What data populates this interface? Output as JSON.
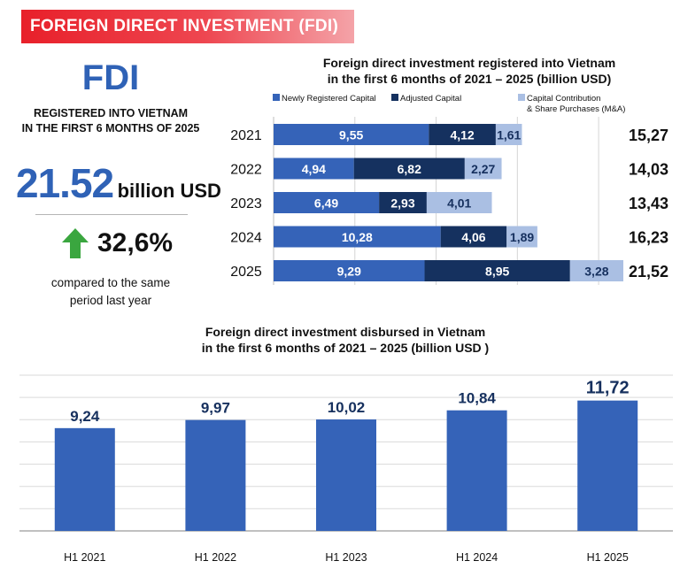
{
  "header": {
    "banner": "FOREIGN DIRECT INVESTMENT (FDI)"
  },
  "summary": {
    "title": "FDI",
    "subtitle_line1": "REGISTERED INTO VIETNAM",
    "subtitle_line2": "IN THE FIRST 6 MONTHS OF 2025",
    "value": "21.52",
    "unit": "billion USD",
    "growth": "32,6%",
    "compare_line1": "compared to the same",
    "compare_line2": "period last year",
    "arrow_color": "#3aa63f"
  },
  "chart_data": [
    {
      "type": "bar",
      "orientation": "horizontal",
      "stacked": true,
      "title_line1": "Foreign direct investment registered into Vietnam",
      "title_line2": "in the first 6 months of 2021 – 2025 (billion USD)",
      "categories": [
        "2021",
        "2022",
        "2023",
        "2024",
        "2025"
      ],
      "series": [
        {
          "name": "Newly Registered Capital",
          "color": "#3563b8",
          "text_color": "#ffffff",
          "values": [
            9.55,
            4.94,
            6.49,
            10.28,
            9.29
          ],
          "labels": [
            "9,55",
            "4,94",
            "6,49",
            "10,28",
            "9,29"
          ]
        },
        {
          "name": "Adjusted Capital",
          "color": "#15315f",
          "text_color": "#ffffff",
          "values": [
            4.12,
            6.82,
            2.93,
            4.06,
            8.95
          ],
          "labels": [
            "4,12",
            "6,82",
            "2,93",
            "4,06",
            "8,95"
          ]
        },
        {
          "name": "Capital Contribution\n& Share Purchases (M&A)",
          "name_line1": "Capital Contribution",
          "name_line2": "& Share Purchases (M&A)",
          "color": "#aabfe3",
          "text_color": "#16305e",
          "values": [
            1.61,
            2.27,
            4.01,
            1.89,
            3.28
          ],
          "labels": [
            "1,61",
            "2,27",
            "4,01",
            "1,89",
            "3,28"
          ]
        }
      ],
      "totals": [
        "15,27",
        "14,03",
        "13,43",
        "16,23",
        "21,52"
      ],
      "xlim": [
        0,
        22
      ],
      "grid": true,
      "legend": "top"
    },
    {
      "type": "bar",
      "title_line1": "Foreign direct investment disbursed in Vietnam",
      "title_line2": "in the first 6 months of 2021 – 2025 (billion USD )",
      "categories": [
        "H1 2021",
        "H1 2022",
        "H1 2023",
        "H1 2024",
        "H1 2025"
      ],
      "values": [
        9.24,
        9.97,
        10.02,
        10.84,
        11.72
      ],
      "labels": [
        "9,24",
        "9,97",
        "10,02",
        "10,84",
        "11,72"
      ],
      "color": "#3563b8",
      "label_color": "#16305e",
      "ylim": [
        0,
        14
      ],
      "grid": true
    }
  ]
}
